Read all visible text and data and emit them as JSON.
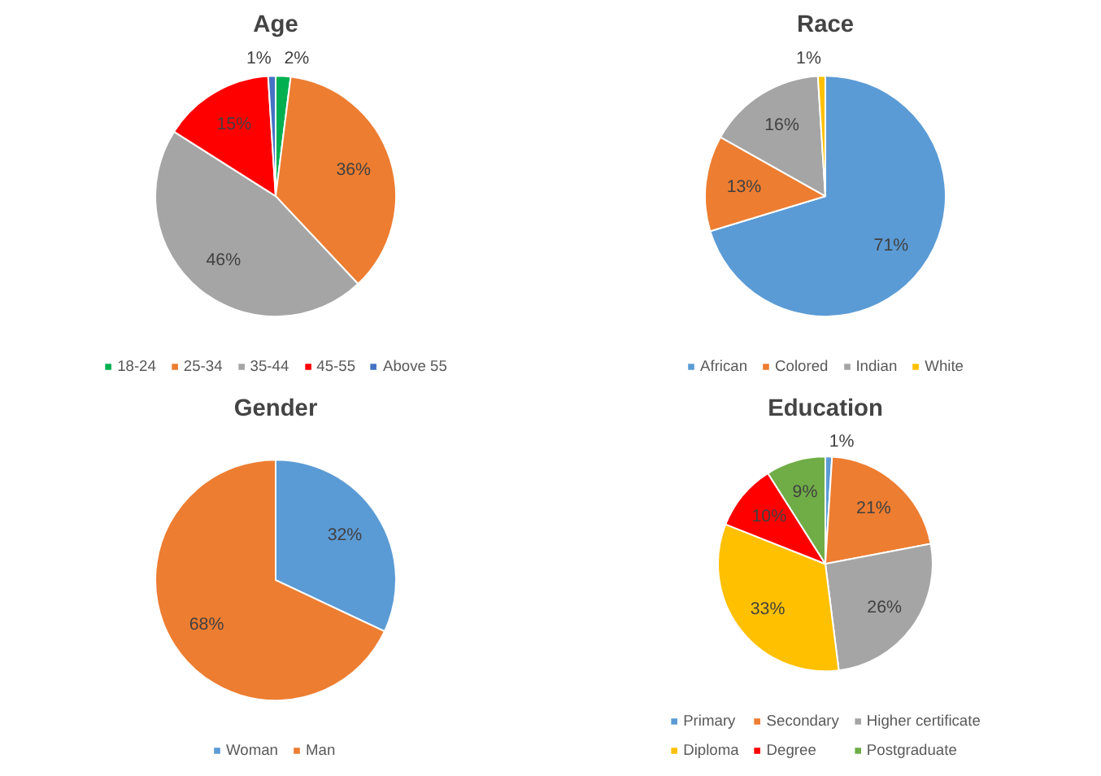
{
  "chart_data": [
    {
      "type": "pie",
      "title": "Age",
      "categories": [
        "18-24",
        "25-34",
        "35-44",
        "45-55",
        "Above 55"
      ],
      "values": [
        2,
        36,
        46,
        15,
        1
      ],
      "value_labels": [
        "2%",
        "36%",
        "46%",
        "15%",
        "1%"
      ],
      "colors": [
        "#00b050",
        "#ed7d31",
        "#a5a5a5",
        "#ff0000",
        "#4472c4"
      ],
      "legend": "bottom"
    },
    {
      "type": "pie",
      "title": "Race",
      "categories": [
        "African",
        "Colored",
        "Indian",
        "White"
      ],
      "values": [
        71,
        13,
        16,
        1
      ],
      "value_labels": [
        "71%",
        "13%",
        "16%",
        "1%"
      ],
      "colors": [
        "#5b9bd5",
        "#ed7d31",
        "#a5a5a5",
        "#ffc000"
      ],
      "legend": "bottom"
    },
    {
      "type": "pie",
      "title": "Gender",
      "categories": [
        "Woman",
        "Man"
      ],
      "values": [
        32,
        68
      ],
      "value_labels": [
        "32%",
        "68%"
      ],
      "colors": [
        "#5b9bd5",
        "#ed7d31"
      ],
      "legend": "bottom"
    },
    {
      "type": "pie",
      "title": "Education",
      "categories": [
        "Primary",
        "Secondary",
        "Higher certificate",
        "Diploma",
        "Degree",
        "Postgraduate"
      ],
      "values": [
        1,
        21,
        26,
        33,
        10,
        9
      ],
      "value_labels": [
        "1%",
        "21%",
        "26%",
        "33%",
        "10%",
        "9%"
      ],
      "colors": [
        "#5b9bd5",
        "#ed7d31",
        "#a5a5a5",
        "#ffc000",
        "#ff0000",
        "#70ad47"
      ],
      "legend": "bottom"
    }
  ]
}
